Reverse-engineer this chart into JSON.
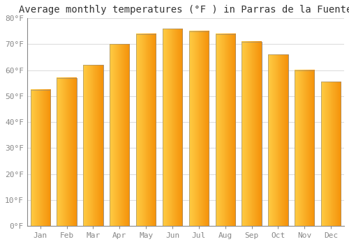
{
  "title": "Average monthly temperatures (°F ) in Parras de la Fuente",
  "months": [
    "Jan",
    "Feb",
    "Mar",
    "Apr",
    "May",
    "Jun",
    "Jul",
    "Aug",
    "Sep",
    "Oct",
    "Nov",
    "Dec"
  ],
  "values": [
    52.5,
    57.0,
    62.0,
    70.0,
    74.0,
    76.0,
    75.0,
    74.0,
    71.0,
    66.0,
    60.0,
    55.5
  ],
  "bar_color_left": "#FFCC44",
  "bar_color_right": "#F5920A",
  "bar_edge_color": "#888888",
  "ylim": [
    0,
    80
  ],
  "ytick_step": 10,
  "background_color": "#FFFFFF",
  "grid_color": "#DDDDDD",
  "title_fontsize": 10,
  "tick_fontsize": 8,
  "axis_color": "#888888",
  "font_family": "monospace"
}
